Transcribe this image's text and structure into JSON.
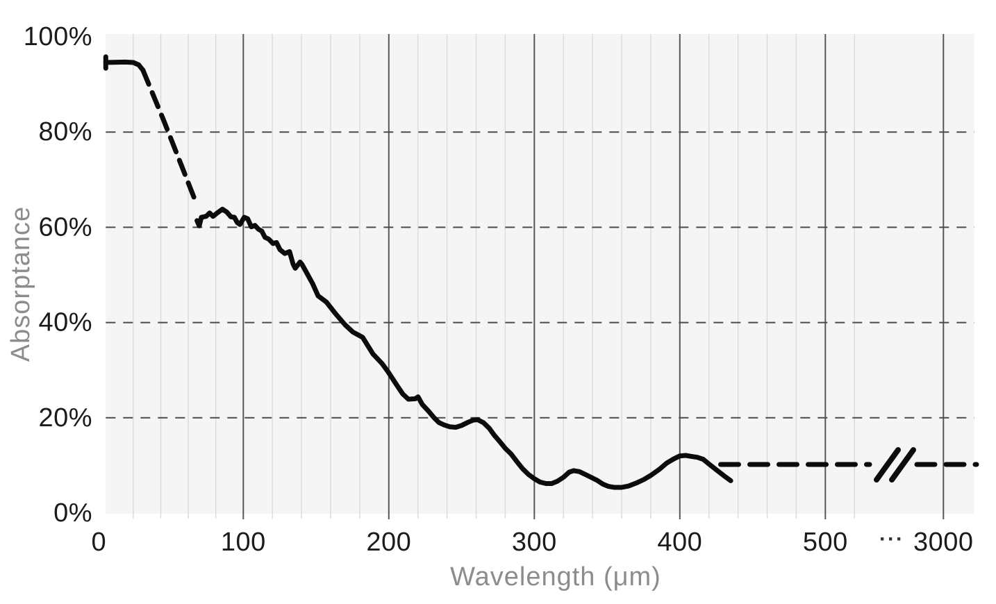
{
  "chart_data": {
    "type": "line",
    "title": "",
    "xlabel": "Wavelength (μm)",
    "ylabel": "Absorptance",
    "legend": "none",
    "grid": {
      "vertical_minor_step_um": 20,
      "vertical_minor_range_um": [
        20,
        520
      ],
      "vertical_major_values_um": [
        100,
        200,
        300,
        400,
        500,
        3000
      ],
      "horizontal_dashed_values_pct": [
        20,
        40,
        60,
        80
      ]
    },
    "x_axis": {
      "unit": "μm",
      "ticks": [
        {
          "value": 0,
          "label": "0"
        },
        {
          "value": 100,
          "label": "100"
        },
        {
          "value": 200,
          "label": "200"
        },
        {
          "value": 300,
          "label": "300"
        },
        {
          "value": 400,
          "label": "400"
        },
        {
          "value": 500,
          "label": "500"
        },
        {
          "value": 3000,
          "label": "3000"
        }
      ],
      "axis_break": {
        "between": [
          520,
          3000
        ],
        "dots_label": "···",
        "line_marker": "//"
      },
      "range_displayed": [
        0,
        3000
      ]
    },
    "y_axis": {
      "unit": "%",
      "ticks": [
        {
          "value": 0,
          "label": "0%"
        },
        {
          "value": 20,
          "label": "20%"
        },
        {
          "value": 40,
          "label": "40%"
        },
        {
          "value": 60,
          "label": "60%"
        },
        {
          "value": 80,
          "label": "80%"
        },
        {
          "value": 100,
          "label": "100%"
        }
      ],
      "range": [
        0,
        100
      ]
    },
    "series": [
      {
        "name": "measured-start-cap",
        "style": "solid",
        "points": [
          [
            0,
            95.8
          ],
          [
            0,
            93.4
          ]
        ]
      },
      {
        "name": "measured-start-plateau",
        "style": "solid",
        "points": [
          [
            0,
            94.6
          ],
          [
            14,
            94.7
          ],
          [
            20,
            94.6
          ],
          [
            24,
            94.1
          ],
          [
            27,
            93.0
          ]
        ]
      },
      {
        "name": "interpolated-descent",
        "style": "dashed",
        "points": [
          [
            27,
            93.0
          ],
          [
            42,
            82.5
          ],
          [
            55,
            73.0
          ],
          [
            66,
            64.9
          ]
        ]
      },
      {
        "name": "measured-main",
        "style": "solid",
        "points": [
          [
            66.3,
            61.4
          ],
          [
            68,
            60.3
          ],
          [
            69.5,
            62.1
          ],
          [
            73,
            62.3
          ],
          [
            75.5,
            63.0
          ],
          [
            78,
            62.3
          ],
          [
            81,
            63.0
          ],
          [
            84.8,
            63.8
          ],
          [
            88,
            63.2
          ],
          [
            91,
            62.2
          ],
          [
            93.5,
            62.1
          ],
          [
            95.6,
            61.0
          ],
          [
            97.5,
            60.6
          ],
          [
            100.6,
            62.1
          ],
          [
            103,
            61.8
          ],
          [
            105.5,
            60.1
          ],
          [
            108,
            60.4
          ],
          [
            110.4,
            59.6
          ],
          [
            112.7,
            59.2
          ],
          [
            114.9,
            57.9
          ],
          [
            117.5,
            57.5
          ],
          [
            120.4,
            56.6
          ],
          [
            122.8,
            56.8
          ],
          [
            125.2,
            55.3
          ],
          [
            128.5,
            54.5
          ],
          [
            131.8,
            54.9
          ],
          [
            134.2,
            52.3
          ],
          [
            135.7,
            51.4
          ],
          [
            139,
            52.7
          ],
          [
            140.4,
            52.2
          ],
          [
            147.6,
            48.2
          ],
          [
            151.4,
            45.6
          ],
          [
            157.1,
            44.3
          ],
          [
            163.3,
            41.9
          ],
          [
            170,
            39.5
          ],
          [
            175.3,
            38.0
          ],
          [
            179.6,
            37.3
          ],
          [
            182,
            36.9
          ],
          [
            189.1,
            33.4
          ],
          [
            195.3,
            31.4
          ],
          [
            199.6,
            29.6
          ],
          [
            205.8,
            26.7
          ],
          [
            209.6,
            25.0
          ],
          [
            213.4,
            23.9
          ],
          [
            218.2,
            24.0
          ],
          [
            220.1,
            24.4
          ],
          [
            223,
            22.8
          ],
          [
            227.3,
            21.4
          ],
          [
            231.1,
            20.0
          ],
          [
            234.5,
            19.0
          ],
          [
            238,
            18.5
          ],
          [
            242,
            18.1
          ],
          [
            246,
            18.0
          ],
          [
            250,
            18.4
          ],
          [
            254,
            19.0
          ],
          [
            258,
            19.5
          ],
          [
            261,
            19.6
          ],
          [
            265,
            19.0
          ],
          [
            269,
            17.8
          ],
          [
            272.6,
            16.3
          ],
          [
            276,
            15.1
          ],
          [
            280,
            13.6
          ],
          [
            284,
            12.4
          ],
          [
            288,
            10.8
          ],
          [
            292,
            9.3
          ],
          [
            296,
            8.1
          ],
          [
            300,
            7.2
          ],
          [
            304,
            6.5
          ],
          [
            308,
            6.2
          ],
          [
            312,
            6.2
          ],
          [
            316,
            6.7
          ],
          [
            320,
            7.5
          ],
          [
            324,
            8.6
          ],
          [
            327,
            8.9
          ],
          [
            331,
            8.7
          ],
          [
            335,
            8.1
          ],
          [
            339,
            7.5
          ],
          [
            343,
            6.9
          ],
          [
            347,
            6.1
          ],
          [
            351,
            5.6
          ],
          [
            355,
            5.4
          ],
          [
            360,
            5.4
          ],
          [
            365,
            5.7
          ],
          [
            370,
            6.3
          ],
          [
            375,
            7.0
          ],
          [
            380,
            7.9
          ],
          [
            386,
            9.2
          ],
          [
            391,
            10.5
          ],
          [
            396,
            11.4
          ],
          [
            400,
            12.0
          ],
          [
            404,
            12.1
          ],
          [
            408,
            11.9
          ],
          [
            412,
            11.7
          ],
          [
            416,
            11.3
          ],
          [
            420,
            10.3
          ],
          [
            425,
            9.1
          ],
          [
            430,
            7.9
          ],
          [
            435,
            6.8
          ]
        ]
      },
      {
        "name": "extrapolated-constant",
        "style": "dashed",
        "value_pct": 10.2,
        "points": [
          [
            428,
            10.2
          ],
          [
            3000,
            10.2
          ]
        ],
        "note_visible": "dashed line continues to right edge with // break marker"
      }
    ],
    "style": {
      "plot_background": "#f5f5f5",
      "page_background": "#ffffff",
      "curve_color": "#0c0c0c",
      "minor_grid_color": "#dcdcdc",
      "major_grid_color": "#55585b",
      "dashed_grid_color": "#4a4a4a",
      "tick_label_color": "#1b1b1b",
      "axis_title_color": "#8c8c8c"
    }
  }
}
